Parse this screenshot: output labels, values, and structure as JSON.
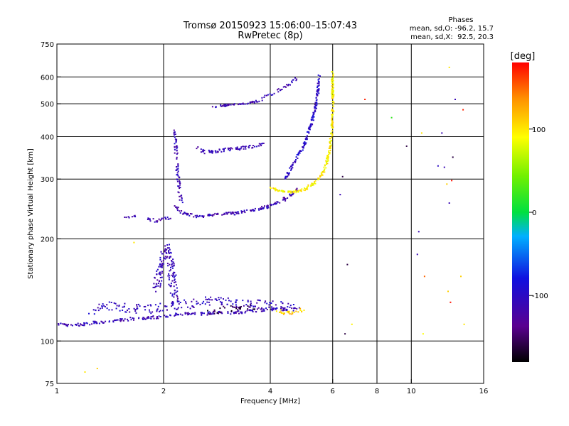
{
  "chart_data": {
    "type": "scatter",
    "title": "Tromsø 20150923 15:06:00–15:07:43",
    "subtitle": "RwPretec (8p)",
    "xlabel": "Frequency [MHz]",
    "ylabel": "Stationary phase Virtual Height [km]",
    "x_scale": "log",
    "y_scale": "log",
    "xlim": [
      1,
      16
    ],
    "ylim": [
      75,
      750
    ],
    "x_ticks": [
      1,
      2,
      4,
      6,
      8,
      10,
      16
    ],
    "y_ticks": [
      75,
      100,
      200,
      300,
      400,
      500,
      600,
      750
    ],
    "x_gridlines": [
      2,
      4,
      6,
      8,
      10
    ],
    "y_gridlines": [
      100,
      200,
      300,
      400,
      500,
      600
    ],
    "grid": true,
    "phase_info": {
      "heading": "Phases",
      "line_o": "mean, sd,O: -96.2, 15.7",
      "line_x": "mean, sd,X:  92.5, 20.3"
    },
    "colorbar": {
      "label": "[deg]",
      "range": [
        -180,
        180
      ],
      "ticks": [
        100,
        0,
        -100
      ],
      "tick_labels": [
        "100",
        "0",
        "-100"
      ],
      "placement": "right"
    },
    "traces": [
      {
        "x": [
          1.0,
          1.1,
          1.25,
          1.4,
          1.6,
          1.8,
          2.0,
          2.2,
          2.5,
          2.8,
          3.2,
          3.6,
          4.0,
          4.4,
          4.8
        ],
        "y": [
          112,
          111,
          113,
          114,
          116,
          117,
          118,
          120,
          120,
          121,
          121,
          123,
          124,
          124,
          125
        ],
        "phase": -110,
        "spread": 0.02,
        "density": 4
      },
      {
        "x": [
          1.25,
          1.4,
          1.6,
          1.8,
          2.0,
          2.3,
          2.6,
          3.0,
          3.4,
          3.8,
          4.2,
          4.6
        ],
        "y": [
          122,
          127,
          125,
          124,
          126,
          128,
          131,
          130,
          129,
          128,
          127,
          126
        ],
        "phase": -105,
        "spread": 0.06,
        "density": 4
      },
      {
        "x": [
          1.9,
          1.95,
          2.0,
          2.05,
          2.1,
          2.12,
          2.15
        ],
        "y": [
          140,
          160,
          180,
          190,
          170,
          150,
          130
        ],
        "phase": -110,
        "spread": 0.05,
        "density": 6
      },
      {
        "x": [
          2.15,
          2.2,
          2.25,
          2.3,
          2.5,
          2.8,
          3.2,
          3.6,
          4.0,
          4.4,
          4.8
        ],
        "y": [
          250,
          245,
          240,
          236,
          233,
          235,
          238,
          243,
          250,
          262,
          280
        ],
        "phase": -112,
        "spread": 0.02,
        "density": 5
      },
      {
        "x": [
          2.14,
          2.16,
          2.18,
          2.2,
          2.22,
          2.25
        ],
        "y": [
          420,
          380,
          340,
          300,
          270,
          255
        ],
        "phase": -110,
        "spread": 0.02,
        "density": 4
      },
      {
        "x": [
          1.8,
          1.9,
          2.0,
          2.1
        ],
        "y": [
          230,
          225,
          232,
          228
        ],
        "phase": -115,
        "spread": 0.02,
        "density": 4
      },
      {
        "x": [
          1.55,
          1.6,
          1.65,
          1.7
        ],
        "y": [
          232,
          231,
          233,
          232
        ],
        "phase": -110,
        "spread": 0.01,
        "density": 3
      },
      {
        "x": [
          4.4,
          4.7,
          5.0,
          5.2,
          5.35,
          5.45,
          5.5
        ],
        "y": [
          300,
          340,
          380,
          430,
          480,
          540,
          610
        ],
        "phase": -100,
        "spread": 0.015,
        "density": 6
      },
      {
        "x": [
          2.5,
          2.6,
          2.8,
          3.0,
          3.3,
          3.6,
          3.8
        ],
        "y": [
          370,
          360,
          362,
          366,
          370,
          375,
          380
        ],
        "phase": -108,
        "spread": 0.02,
        "density": 5
      },
      {
        "x": [
          2.7,
          3.0,
          3.3,
          3.6,
          3.8
        ],
        "y": [
          490,
          495,
          500,
          505,
          515
        ],
        "phase": -110,
        "spread": 0.015,
        "density": 4
      },
      {
        "x": [
          3.8,
          4.1,
          4.5,
          4.8
        ],
        "y": [
          520,
          540,
          570,
          600
        ],
        "phase": -110,
        "spread": 0.02,
        "density": 3
      },
      {
        "x": [
          4.0,
          4.3,
          4.6,
          5.0,
          5.4,
          5.7,
          5.9,
          6.0,
          6.0
        ],
        "y": [
          282,
          276,
          274,
          280,
          295,
          320,
          370,
          450,
          620
        ],
        "phase": 95,
        "spread": 0.015,
        "density": 6
      },
      {
        "x": [
          4.2,
          4.5,
          4.8,
          5.0
        ],
        "y": [
          122,
          121,
          123,
          125
        ],
        "phase": 110,
        "spread": 0.03,
        "density": 4
      },
      {
        "x": [
          2.7,
          3.0,
          3.3,
          3.6
        ],
        "y": [
          122,
          124,
          126,
          125
        ],
        "phase": -160,
        "spread": 0.04,
        "density": 3
      }
    ],
    "scatter_points": [
      {
        "x": 1.2,
        "y": 81,
        "phase": 100
      },
      {
        "x": 1.3,
        "y": 83,
        "phase": 110
      },
      {
        "x": 1.65,
        "y": 195,
        "phase": 100
      },
      {
        "x": 6.5,
        "y": 105,
        "phase": -160
      },
      {
        "x": 6.6,
        "y": 168,
        "phase": -160
      },
      {
        "x": 6.8,
        "y": 112,
        "phase": 95
      },
      {
        "x": 7.4,
        "y": 515,
        "phase": 170
      },
      {
        "x": 6.4,
        "y": 305,
        "phase": -160
      },
      {
        "x": 6.3,
        "y": 270,
        "phase": -110
      },
      {
        "x": 8.8,
        "y": 455,
        "phase": 20
      },
      {
        "x": 10.5,
        "y": 210,
        "phase": -110
      },
      {
        "x": 10.4,
        "y": 180,
        "phase": -110
      },
      {
        "x": 10.9,
        "y": 155,
        "phase": 150
      },
      {
        "x": 10.7,
        "y": 410,
        "phase": 100
      },
      {
        "x": 12.8,
        "y": 640,
        "phase": 100
      },
      {
        "x": 13.3,
        "y": 515,
        "phase": -110
      },
      {
        "x": 14.0,
        "y": 480,
        "phase": 170
      },
      {
        "x": 13.8,
        "y": 155,
        "phase": 110
      },
      {
        "x": 12.7,
        "y": 140,
        "phase": 110
      },
      {
        "x": 12.9,
        "y": 130,
        "phase": 175
      },
      {
        "x": 12.8,
        "y": 255,
        "phase": -110
      },
      {
        "x": 13.0,
        "y": 297,
        "phase": 175
      },
      {
        "x": 12.4,
        "y": 325,
        "phase": -110
      },
      {
        "x": 13.1,
        "y": 348,
        "phase": -160
      },
      {
        "x": 12.6,
        "y": 290,
        "phase": 110
      },
      {
        "x": 14.1,
        "y": 112,
        "phase": 100
      },
      {
        "x": 12.2,
        "y": 410,
        "phase": -110
      },
      {
        "x": 9.7,
        "y": 375,
        "phase": -160
      },
      {
        "x": 11.9,
        "y": 328,
        "phase": -100
      },
      {
        "x": 10.8,
        "y": 105,
        "phase": 90
      }
    ]
  }
}
